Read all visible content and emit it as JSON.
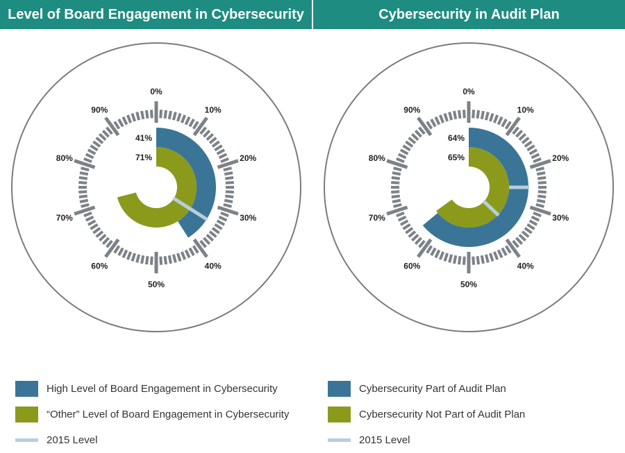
{
  "colors": {
    "header_bg": "#1e8c80",
    "blue": "#3a7597",
    "olive": "#8b9a1b",
    "tick": "#7d8288",
    "marker_2015": "#b5cfdd",
    "circle": "#7a7a7a"
  },
  "chart_data": [
    {
      "type": "radial-bar",
      "title": "Level of Board Engagement in Cybersecurity",
      "tick_labels": [
        "0%",
        "10%",
        "20%",
        "30%",
        "40%",
        "50%",
        "60%",
        "70%",
        "80%",
        "90%"
      ],
      "series": [
        {
          "name": "High Level of Board Engagement in Cybersecurity",
          "value": 41,
          "label": "41%",
          "level_2015": 34,
          "color": "#3a7597"
        },
        {
          "name": "“Other” Level of Board Engagement in Cybersecurity",
          "value": 71,
          "label": "71%",
          "level_2015": 34,
          "color": "#8b9a1b"
        }
      ],
      "legend": [
        {
          "label": "High Level of Board Engagement in Cybersecurity",
          "color": "#3a7597",
          "kind": "box"
        },
        {
          "label": "“Other” Level of Board Engagement in Cybersecurity",
          "color": "#8b9a1b",
          "kind": "box"
        },
        {
          "label": "2015 Level",
          "color": "#b5cfdd",
          "kind": "line"
        }
      ]
    },
    {
      "type": "radial-bar",
      "title": "Cybersecurity in Audit Plan",
      "tick_labels": [
        "0%",
        "10%",
        "20%",
        "30%",
        "40%",
        "50%",
        "60%",
        "70%",
        "80%",
        "90%"
      ],
      "series": [
        {
          "name": "Cybersecurity Part of Audit Plan",
          "value": 64,
          "label": "64%",
          "level_2015": 25,
          "color": "#3a7597"
        },
        {
          "name": "Cybersecurity Not Part of Audit Plan",
          "value": 65,
          "label": "65%",
          "level_2015": 37,
          "color": "#8b9a1b"
        }
      ],
      "legend": [
        {
          "label": "Cybersecurity Part of Audit Plan",
          "color": "#3a7597",
          "kind": "box"
        },
        {
          "label": "Cybersecurity Not Part of Audit Plan",
          "color": "#8b9a1b",
          "kind": "box"
        },
        {
          "label": "2015 Level",
          "color": "#b5cfdd",
          "kind": "line"
        }
      ]
    }
  ]
}
